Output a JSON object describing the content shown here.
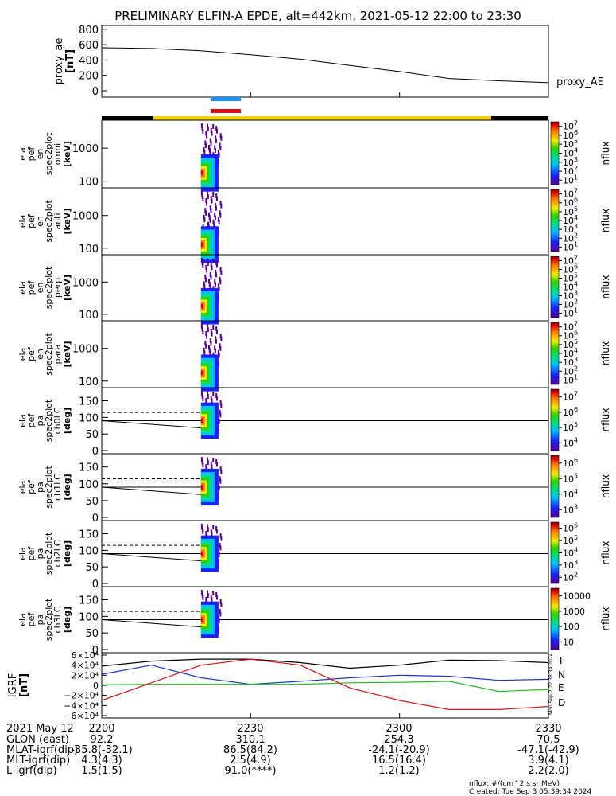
{
  "title": "PRELIMINARY ELFIN-A EPDE, alt=442km, 2021-05-12 22:00 to 23:30",
  "time_axis": {
    "ticks": [
      "2200",
      "2230",
      "2300",
      "2330"
    ]
  },
  "panels": {
    "ae": {
      "ylabel1": "proxy_ae",
      "ylabel2": "[nT]",
      "legend": "proxy_AE"
    },
    "spec": [
      {
        "l1": "ela",
        "l2": "pef",
        "l3": "en",
        "l4": "spec2plot",
        "l5": "omni",
        "unit": "[keV]"
      },
      {
        "l1": "ela",
        "l2": "pef",
        "l3": "en",
        "l4": "spec2plot",
        "l5": "anti",
        "unit": "[keV]"
      },
      {
        "l1": "ela",
        "l2": "pef",
        "l3": "en",
        "l4": "spec2plot",
        "l5": "perp",
        "unit": "[keV]"
      },
      {
        "l1": "ela",
        "l2": "pef",
        "l3": "en",
        "l4": "spec2plot",
        "l5": "para",
        "unit": "[keV]"
      }
    ],
    "pa": [
      {
        "l1": "ela",
        "l2": "pef",
        "l3": "pa",
        "l4": "spec2plot",
        "l5": "ch0LC",
        "unit": "[deg]"
      },
      {
        "l1": "ela",
        "l2": "pef",
        "l3": "pa",
        "l4": "spec2plot",
        "l5": "ch1LC",
        "unit": "[deg]"
      },
      {
        "l1": "ela",
        "l2": "pef",
        "l3": "pa",
        "l4": "spec2plot",
        "l5": "ch2LC",
        "unit": "[deg]"
      },
      {
        "l1": "ela",
        "l2": "pef",
        "l3": "pa",
        "l4": "spec2plot",
        "l5": "ch3LC",
        "unit": "[deg]"
      }
    ],
    "igrf": {
      "ylabel1": "IGRF",
      "ylabel2": "[nT]",
      "legend": [
        "T",
        "N",
        "E",
        "D"
      ],
      "stamp": "Mon Sep  2 22:38:34 2024"
    },
    "colorbar_label": "nflux"
  },
  "footer": {
    "rows": [
      {
        "label": "2021 May 12",
        "vals": [
          "2200",
          "2230",
          "2300",
          "2330"
        ]
      },
      {
        "label": "GLON (east)",
        "vals": [
          "92.2",
          "310.1",
          "254.3",
          "70.5"
        ]
      },
      {
        "label": "MLAT-igrf(dip)",
        "vals": [
          "-35.8(-32.1)",
          "86.5(84.2)",
          "-24.1(-20.9)",
          "-47.1(-42.9)"
        ]
      },
      {
        "label": "MLT-igrf(dip)",
        "vals": [
          "4.3(4.3)",
          "2.5(4.9)",
          "16.5(16.4)",
          "3.9(4.1)"
        ]
      },
      {
        "label": "L-igrf(dip)",
        "vals": [
          "1.5(1.5)",
          "91.0(****)",
          "1.2(1.2)",
          "2.2(2.0)"
        ]
      }
    ],
    "units_note": "nflux: #/(cm^2 s sr MeV)",
    "created": "Created: Tue Sep  3 05:39:34 2024"
  },
  "colors": {
    "T": "#000000",
    "N": "#1a33cc",
    "E": "#22bb22",
    "D": "#dd1111",
    "orbit_day": "#f5d000",
    "orbit_night": "#000000",
    "bar_blue": "#1f8fff",
    "bar_red": "#e01010"
  },
  "chart_data": [
    {
      "type": "line",
      "name": "proxy_ae",
      "x_range": [
        "22:00",
        "23:30"
      ],
      "ylim": [
        0,
        850
      ],
      "yticks": [
        "0",
        "200",
        "400",
        "600",
        "800"
      ],
      "x": [
        "22:00",
        "22:10",
        "22:20",
        "22:30",
        "22:40",
        "22:50",
        "23:00",
        "23:10",
        "23:20",
        "23:30"
      ],
      "y": [
        560,
        550,
        520,
        470,
        410,
        330,
        250,
        160,
        130,
        105
      ]
    },
    {
      "type": "heatmap",
      "name": "energy spectrograms",
      "yscale": "log",
      "ylim": [
        63,
        7000
      ],
      "yticks": [
        "100",
        "1000"
      ],
      "active_time": [
        "22:20",
        "22:23"
      ],
      "colorbar": {
        "scale": "log",
        "range": [
          "10^1",
          "10^7"
        ]
      }
    },
    {
      "type": "heatmap",
      "name": "pitch angle spectrograms",
      "ylim": [
        0,
        180
      ],
      "yticks": [
        "0",
        "50",
        "100",
        "150"
      ],
      "active_time": [
        "22:20",
        "22:23"
      ],
      "colorbars": [
        {
          "ticks": [
            "10^4",
            "10^5",
            "10^6",
            "10^7"
          ]
        },
        {
          "ticks": [
            "10^3",
            "10^4",
            "10^5",
            "10^6"
          ]
        },
        {
          "ticks": [
            "10^2",
            "10^3",
            "10^4",
            "10^5",
            "10^6"
          ]
        },
        {
          "ticks": [
            "10",
            "100",
            "1000",
            "10000"
          ]
        }
      ]
    },
    {
      "type": "line",
      "name": "IGRF",
      "ylim": [
        -60000,
        60000
      ],
      "yticks": [
        "6×10⁴",
        "4×10⁴",
        "2×10⁴",
        "0",
        "−2×10⁴",
        "−4×10⁴",
        "−6×10⁴"
      ],
      "x": [
        "22:00",
        "22:10",
        "22:20",
        "22:30",
        "22:40",
        "22:50",
        "23:00",
        "23:10",
        "23:20",
        "23:30"
      ],
      "series": [
        {
          "name": "T",
          "values": [
            38000,
            48000,
            52000,
            52000,
            45000,
            34000,
            40000,
            50000,
            49000,
            45000
          ]
        },
        {
          "name": "N",
          "values": [
            22000,
            40000,
            15000,
            2000,
            8000,
            15000,
            20000,
            18000,
            10000,
            12000
          ]
        },
        {
          "name": "E",
          "values": [
            1000,
            2000,
            2000,
            2000,
            2000,
            5000,
            6000,
            8000,
            -12000,
            -8000
          ]
        },
        {
          "name": "D",
          "values": [
            -30000,
            5000,
            40000,
            52000,
            40000,
            -5000,
            -30000,
            -48000,
            -48000,
            -42000
          ]
        }
      ]
    }
  ]
}
